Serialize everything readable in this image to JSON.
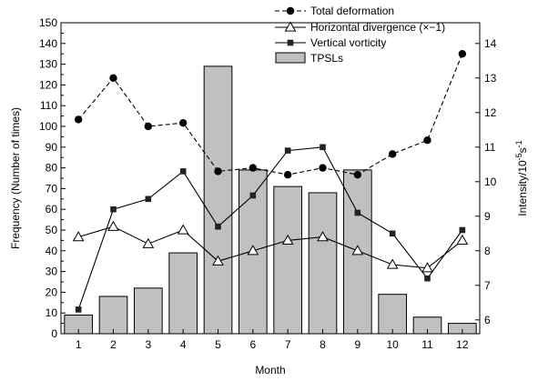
{
  "chart_data": {
    "type": "bar+line",
    "xlabel": "Month",
    "ylabel_left": "Frequency (Number of times)",
    "ylabel_right_base": "Intensity/10",
    "ylabel_right_sup1": "-5",
    "ylabel_right_mid": "s",
    "ylabel_right_sup2": "-1",
    "categories": [
      "1",
      "2",
      "3",
      "4",
      "5",
      "6",
      "7",
      "8",
      "9",
      "10",
      "11",
      "12"
    ],
    "ylim_left": [
      0,
      150
    ],
    "yticks_left": [
      "0",
      "10",
      "20",
      "30",
      "40",
      "50",
      "60",
      "70",
      "80",
      "90",
      "100",
      "110",
      "120",
      "130",
      "140",
      "150"
    ],
    "ylim_right": [
      5.6,
      14.6
    ],
    "yticks_right": [
      "6",
      "7",
      "8",
      "9",
      "10",
      "11",
      "12",
      "13",
      "14"
    ],
    "legend_position": "top-right",
    "grid": false,
    "series": [
      {
        "name": "Total deformation",
        "type": "line",
        "axis": "right",
        "style": "dashed",
        "marker": "circle-filled",
        "values": [
          11.8,
          13.0,
          11.6,
          11.7,
          10.3,
          10.4,
          10.2,
          10.4,
          10.2,
          10.8,
          11.2,
          13.7
        ]
      },
      {
        "name": "Horizontal divergence (×−1)",
        "type": "line",
        "axis": "right",
        "style": "solid",
        "marker": "triangle-open",
        "values": [
          8.4,
          8.7,
          8.2,
          8.6,
          7.7,
          8.0,
          8.3,
          8.4,
          8.0,
          7.6,
          7.5,
          8.3
        ]
      },
      {
        "name": "Vertical vorticity",
        "type": "line",
        "axis": "right",
        "style": "solid",
        "marker": "square-filled",
        "values": [
          6.3,
          9.2,
          9.5,
          10.3,
          8.7,
          9.6,
          10.9,
          11.0,
          9.1,
          8.5,
          7.2,
          8.6
        ]
      },
      {
        "name": "TPSLs",
        "type": "bar",
        "axis": "left",
        "color": "#c0c0c0",
        "values": [
          9,
          18,
          22,
          39,
          129,
          79,
          71,
          68,
          79,
          19,
          8,
          5
        ]
      }
    ]
  }
}
